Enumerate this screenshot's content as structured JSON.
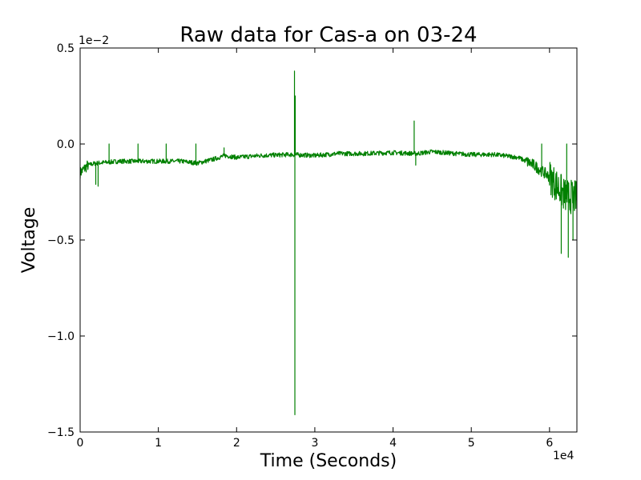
{
  "chart_data": {
    "type": "line",
    "title": "Raw data for Cas-a on 03-24",
    "xlabel": "Time (Seconds)",
    "ylabel": "Voltage",
    "x_offset_label": "1e4",
    "y_offset_label": "1e−2",
    "xlim": [
      0,
      6.35
    ],
    "ylim": [
      -1.5,
      0.5
    ],
    "x_ticks": [
      0,
      1,
      2,
      3,
      4,
      5,
      6
    ],
    "x_tick_labels": [
      "0",
      "1",
      "2",
      "3",
      "4",
      "5",
      "6"
    ],
    "y_ticks": [
      0.5,
      0.0,
      -0.5,
      -1.0,
      -1.5
    ],
    "y_tick_labels": [
      "0.5",
      "0.0",
      "−0.5",
      "−1.0",
      "−1.5"
    ],
    "grid": false,
    "series": [
      {
        "color": "#008000",
        "baseline": [
          [
            0.0,
            -0.15
          ],
          [
            0.1,
            -0.11
          ],
          [
            0.2,
            -0.1
          ],
          [
            0.5,
            -0.09
          ],
          [
            1.0,
            -0.09
          ],
          [
            1.3,
            -0.09
          ],
          [
            1.5,
            -0.1
          ],
          [
            1.7,
            -0.08
          ],
          [
            1.85,
            -0.06
          ],
          [
            2.0,
            -0.07
          ],
          [
            2.3,
            -0.06
          ],
          [
            2.7,
            -0.055
          ],
          [
            3.0,
            -0.06
          ],
          [
            3.3,
            -0.05
          ],
          [
            3.6,
            -0.05
          ],
          [
            4.0,
            -0.045
          ],
          [
            4.3,
            -0.05
          ],
          [
            4.5,
            -0.04
          ],
          [
            4.8,
            -0.05
          ],
          [
            5.0,
            -0.055
          ],
          [
            5.3,
            -0.055
          ],
          [
            5.6,
            -0.07
          ],
          [
            5.8,
            -0.11
          ],
          [
            6.0,
            -0.17
          ],
          [
            6.1,
            -0.22
          ],
          [
            6.2,
            -0.27
          ],
          [
            6.35,
            -0.28
          ]
        ],
        "spikes": [
          {
            "x": 0.2,
            "y": -0.21
          },
          {
            "x": 0.23,
            "y": -0.22
          },
          {
            "x": 0.37,
            "y": 0.0
          },
          {
            "x": 0.74,
            "y": 0.0
          },
          {
            "x": 1.1,
            "y": 0.0
          },
          {
            "x": 1.48,
            "y": 0.0
          },
          {
            "x": 1.84,
            "y": -0.02
          },
          {
            "x": 2.74,
            "y": 0.38
          },
          {
            "x": 2.745,
            "y": -1.41
          },
          {
            "x": 2.75,
            "y": 0.25
          },
          {
            "x": 4.27,
            "y": 0.12
          },
          {
            "x": 4.29,
            "y": -0.11
          },
          {
            "x": 5.9,
            "y": 0.0
          },
          {
            "x": 6.15,
            "y": -0.57
          },
          {
            "x": 6.22,
            "y": 0.0
          },
          {
            "x": 6.24,
            "y": -0.59
          },
          {
            "x": 6.3,
            "y": -0.5
          }
        ]
      }
    ]
  }
}
